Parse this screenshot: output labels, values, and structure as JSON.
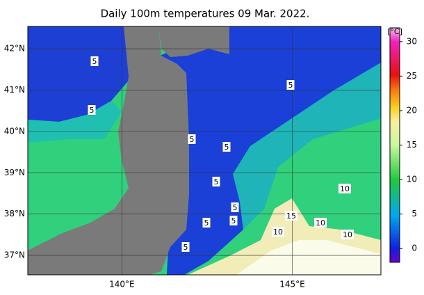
{
  "title": "Daily 100m temperatures 09 Mar. 2022.",
  "map": {
    "lon_lim": [
      137.24,
      147.6
    ],
    "lat_lim": [
      36.53,
      42.54
    ],
    "lat_ticks": [
      {
        "value": 42,
        "label": "42°N"
      },
      {
        "value": 41,
        "label": "41°N"
      },
      {
        "value": 40,
        "label": "40°N"
      },
      {
        "value": 39,
        "label": "39°N"
      },
      {
        "value": 38,
        "label": "38°N"
      },
      {
        "value": 37,
        "label": "37°N"
      }
    ],
    "lon_ticks": [
      {
        "value": 140,
        "label": "140°E"
      },
      {
        "value": 145,
        "label": "145°E"
      }
    ],
    "contour_labels": [
      "5",
      "5",
      "5",
      "5",
      "5",
      "5",
      "5",
      "5",
      "5",
      "5",
      "10",
      "10",
      "10",
      "10",
      "15"
    ]
  },
  "colorbar": {
    "unit": "[°C]",
    "lim": [
      -2,
      32
    ],
    "ticks": [
      0,
      5,
      10,
      15,
      20,
      25,
      30
    ]
  }
}
